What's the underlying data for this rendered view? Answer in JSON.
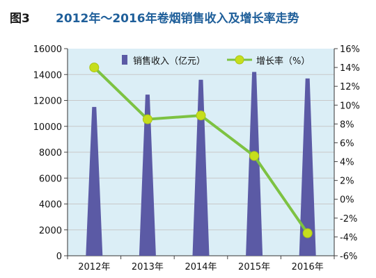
{
  "figure_label": "图3",
  "chart_data": {
    "type": "bar",
    "title": "2012年～2016年卷烟销售收入及增长率走势",
    "categories": [
      "2012年",
      "2013年",
      "2014年",
      "2015年",
      "2016年"
    ],
    "series": [
      {
        "name": "销售收入（亿元）",
        "type": "bar",
        "axis": "left",
        "values": [
          11500,
          12450,
          13600,
          14200,
          13700
        ]
      },
      {
        "name": "增长率（%）",
        "type": "line",
        "axis": "right",
        "values": [
          14.0,
          8.5,
          8.9,
          4.6,
          -3.6
        ]
      }
    ],
    "ylim_left": [
      0,
      16000
    ],
    "yticks_left": [
      "0",
      "2000",
      "4000",
      "6000",
      "8000",
      "10000",
      "12000",
      "14000",
      "16000"
    ],
    "ylim_right": [
      -6,
      16
    ],
    "yticks_right": [
      "-6%",
      "-4%",
      "-2%",
      "0%",
      "2%",
      "4%",
      "6%",
      "8%",
      "10%",
      "12%",
      "14%",
      "16%"
    ],
    "grid": true,
    "legend_position": "top",
    "colors": {
      "bar": "#5b5aa5",
      "line": "#7dc242",
      "marker": "#c6de1c",
      "grid": "#c8c8c8",
      "background": "#dbeef6"
    }
  }
}
